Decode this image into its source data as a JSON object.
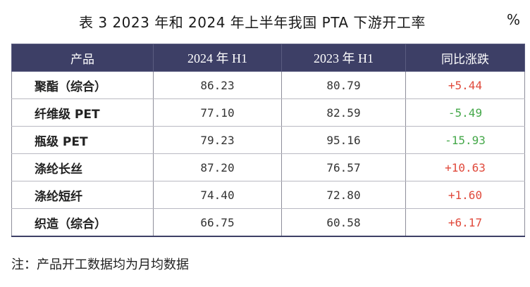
{
  "title": "表 3  2023 年和 2024 年上半年我国 PTA 下游开工率",
  "unit": "%",
  "colors": {
    "header_bg": "#3d3f66",
    "positive": "#e04a3c",
    "negative": "#45a84a"
  },
  "table": {
    "headers": [
      "产品",
      "2024 年 H1",
      "2023 年 H1",
      "同比涨跌"
    ],
    "rows": [
      {
        "product": "聚酯（综合）",
        "h1_2024": "86.23",
        "h1_2023": "80.79",
        "change": "+5.44",
        "direction": "up"
      },
      {
        "product": "纤维级 PET",
        "h1_2024": "77.10",
        "h1_2023": "82.59",
        "change": "-5.49",
        "direction": "down"
      },
      {
        "product": "瓶级 PET",
        "h1_2024": "79.23",
        "h1_2023": "95.16",
        "change": "-15.93",
        "direction": "down"
      },
      {
        "product": "涤纶长丝",
        "h1_2024": "87.20",
        "h1_2023": "76.57",
        "change": "+10.63",
        "direction": "up"
      },
      {
        "product": "涤纶短纤",
        "h1_2024": "74.40",
        "h1_2023": "72.80",
        "change": "+1.60",
        "direction": "up"
      },
      {
        "product": "织造（综合）",
        "h1_2024": "66.75",
        "h1_2023": "60.58",
        "change": "+6.17",
        "direction": "up"
      }
    ]
  },
  "note": "注：产品开工数据均为月均数据"
}
